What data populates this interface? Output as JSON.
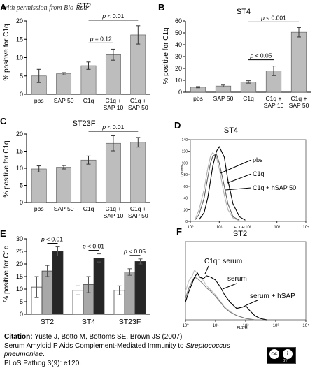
{
  "watermark": "with permission from Bio-Rad",
  "panels": [
    {
      "letter": "A",
      "title": "ST2",
      "ylabel": "% positive for C1q",
      "categories": [
        "pbs",
        "SAP 50",
        "C1q",
        "C1q +\nSAP 10",
        "C1q +\nSAP 50"
      ],
      "brackets": [
        {
          "from": 2,
          "to": 4,
          "label": "p < 0.01"
        },
        {
          "from": 2,
          "to": 3,
          "label": "p = 0.12"
        }
      ]
    },
    {
      "letter": "B",
      "title": "ST4",
      "ylabel": "% positive for C1q",
      "categories": [
        "pbs",
        "SAP 50",
        "C1q",
        "C1q +\nSAP 10",
        "C1q +\nSAP 50"
      ],
      "brackets": [
        {
          "from": 2,
          "to": 4,
          "label": "p < 0.001"
        },
        {
          "from": 2,
          "to": 3,
          "label": "p < 0.05"
        }
      ]
    },
    {
      "letter": "C",
      "title": "ST23F",
      "ylabel": "% positive for C1q",
      "categories": [
        "pbs",
        "SAP 50",
        "C1q",
        "C1q +\nSAP 10",
        "C1q +\nSAP 50"
      ],
      "brackets": [
        {
          "from": 2,
          "to": 4,
          "label": "p < 0.01"
        }
      ]
    },
    {
      "letter": "D",
      "title": "ST4",
      "ylabel": "Counts",
      "xlabel": "FL1-H",
      "curve_labels": [
        "pbs",
        "C1q",
        "C1q + hSAP 50"
      ]
    },
    {
      "letter": "E",
      "ylabel": "% positive for C1q",
      "groups": [
        "ST2",
        "ST4",
        "ST23F"
      ],
      "brackets": [
        {
          "group": 0,
          "label": "p < 0.01"
        },
        {
          "group": 1,
          "label": "p < 0.01"
        },
        {
          "group": 2,
          "label": "p < 0.05"
        }
      ]
    },
    {
      "letter": "F",
      "title": "ST2",
      "xlabel": "FL1-H",
      "curve_labels": [
        "C1q⁻ serum",
        "serum",
        "serum + hSAP"
      ]
    }
  ],
  "chart_data": [
    {
      "type": "bar",
      "title": "ST2",
      "ylabel": "% positive for C1q",
      "categories": [
        "pbs",
        "SAP 50",
        "C1q",
        "C1q + SAP 10",
        "C1q + SAP 50"
      ],
      "values": [
        5.0,
        5.6,
        7.8,
        10.8,
        16.2
      ],
      "errors": [
        1.8,
        0.3,
        1.0,
        1.5,
        2.5
      ],
      "yticks": [
        0,
        5,
        10,
        15,
        20
      ],
      "ylim": [
        0,
        20
      ]
    },
    {
      "type": "bar",
      "title": "ST4",
      "ylabel": "% positive for C1q",
      "categories": [
        "pbs",
        "SAP 50",
        "C1q",
        "C1q + SAP 10",
        "C1q + SAP 50"
      ],
      "values": [
        4.2,
        5.2,
        8.6,
        18.0,
        50.5
      ],
      "errors": [
        0.5,
        0.8,
        1.0,
        4.0,
        4.0
      ],
      "yticks": [
        0,
        10,
        20,
        30,
        40,
        50,
        60
      ],
      "ylim": [
        0,
        60
      ]
    },
    {
      "type": "bar",
      "title": "ST23F",
      "ylabel": "% positive for C1q",
      "categories": [
        "pbs",
        "SAP 50",
        "C1q",
        "C1q + SAP 10",
        "C1q + SAP 50"
      ],
      "values": [
        9.8,
        10.3,
        12.4,
        17.3,
        17.6
      ],
      "errors": [
        0.9,
        0.5,
        1.2,
        2.2,
        1.4
      ],
      "yticks": [
        0,
        5,
        10,
        15,
        20
      ],
      "ylim": [
        0,
        20
      ]
    },
    {
      "type": "line",
      "title": "ST4",
      "ylabel": "Counts",
      "xlabel": "FL1-H",
      "xscale": "log",
      "xlim": [
        1,
        10000
      ],
      "ylim": [
        0,
        140
      ],
      "xticks": [
        "10⁰",
        "10¹",
        "10²",
        "10³",
        "10⁴"
      ],
      "yticks": [
        0,
        20,
        40,
        60,
        80,
        100,
        120,
        140
      ],
      "series": [
        {
          "name": "pbs",
          "color": "#b5b5b5",
          "x": [
            1.5,
            2,
            3,
            4,
            5,
            6,
            8,
            10,
            15,
            20,
            30,
            50
          ],
          "y": [
            5,
            20,
            55,
            90,
            112,
            118,
            110,
            90,
            45,
            20,
            6,
            1
          ]
        },
        {
          "name": "C1q",
          "color": "#606060",
          "x": [
            1.5,
            2,
            3,
            4,
            5,
            6,
            8,
            10,
            15,
            20,
            30,
            50
          ],
          "y": [
            3,
            12,
            40,
            75,
            100,
            112,
            115,
            100,
            60,
            30,
            8,
            2
          ]
        },
        {
          "name": "C1q + hSAP 50",
          "color": "#000000",
          "x": [
            2,
            3,
            4,
            5,
            6,
            8,
            10,
            15,
            20,
            30,
            50,
            80
          ],
          "y": [
            3,
            15,
            40,
            70,
            95,
            120,
            128,
            110,
            70,
            30,
            8,
            2
          ]
        }
      ]
    },
    {
      "type": "bar",
      "ylabel": "% positive for C1q",
      "categories": [
        "ST2",
        "ST4",
        "ST23F"
      ],
      "yticks": [
        0,
        5,
        10,
        15,
        20,
        25,
        30
      ],
      "ylim": [
        0,
        30
      ],
      "series": [
        {
          "color": "#ffffff",
          "values": [
            10.8,
            9.5,
            9.5
          ],
          "errors": [
            4.2,
            1.8,
            1.8
          ]
        },
        {
          "color": "#a8a8a8",
          "values": [
            17.2,
            11.8,
            16.8
          ],
          "errors": [
            2.2,
            3.2,
            1.3
          ]
        },
        {
          "color": "#262626",
          "values": [
            25.0,
            22.4,
            21.0
          ],
          "errors": [
            1.8,
            1.6,
            1.0
          ]
        }
      ]
    },
    {
      "type": "line",
      "title": "ST2",
      "xlabel": "FL1-H",
      "xscale": "log",
      "xlim": [
        1,
        10000
      ],
      "ylim": [
        0,
        110
      ],
      "xticks": [
        "10⁰",
        "10¹",
        "10²",
        "10³",
        "10⁴"
      ],
      "series": [
        {
          "name": "C1q⁻ serum",
          "color": "#c4c4c4",
          "x": [
            1,
            1.3,
            1.7,
            2,
            2.5,
            3,
            4,
            5,
            7,
            10,
            15,
            20,
            30,
            50,
            100,
            200
          ],
          "y": [
            40,
            55,
            62,
            70,
            65,
            60,
            55,
            48,
            42,
            35,
            25,
            18,
            12,
            6,
            2,
            0
          ]
        },
        {
          "name": "serum",
          "color": "#7a7a7a",
          "x": [
            1,
            1.3,
            1.7,
            2,
            2.5,
            3,
            4,
            5,
            7,
            10,
            15,
            20,
            30,
            50,
            100,
            200
          ],
          "y": [
            30,
            45,
            55,
            60,
            58,
            55,
            50,
            45,
            40,
            33,
            24,
            17,
            11,
            6,
            2,
            0
          ]
        },
        {
          "name": "serum + hSAP",
          "color": "#000000",
          "x": [
            1,
            1.3,
            1.7,
            2,
            2.5,
            3,
            4,
            5,
            7,
            10,
            15,
            20,
            30,
            50,
            80,
            100,
            130,
            200,
            300,
            500
          ],
          "y": [
            25,
            40,
            52,
            60,
            66,
            60,
            58,
            62,
            60,
            56,
            45,
            35,
            25,
            16,
            18,
            20,
            14,
            6,
            2,
            0
          ]
        }
      ]
    }
  ],
  "citation": {
    "label": "Citation:",
    "authors": " Yuste J, Botto M, Bottoms SE, Brown JS (2007)",
    "title_plain": "Serum Amyloid P Aids Complement-Mediated Immunity to ",
    "title_italic": "Streptococcus pneumoniae",
    "title_end": ".",
    "journal": "PLoS Pathog 3(9): e120."
  },
  "license": {
    "badge_left": "cc",
    "badge_right": "i",
    "badge_caption": "BY"
  }
}
